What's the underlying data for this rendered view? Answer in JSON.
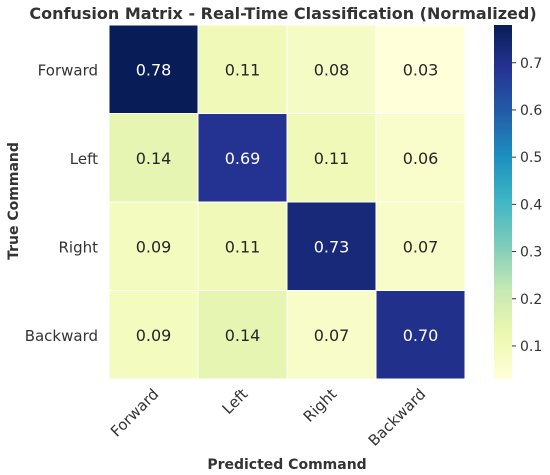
{
  "chart_data": {
    "type": "heatmap",
    "title": "Confusion Matrix - Real-Time Classification (Normalized)",
    "xlabel": "Predicted Command",
    "ylabel": "True Command",
    "x_categories": [
      "Forward",
      "Left",
      "Right",
      "Backward"
    ],
    "y_categories": [
      "Forward",
      "Left",
      "Right",
      "Backward"
    ],
    "values": [
      [
        0.78,
        0.11,
        0.08,
        0.03
      ],
      [
        0.14,
        0.69,
        0.11,
        0.06
      ],
      [
        0.09,
        0.11,
        0.73,
        0.07
      ],
      [
        0.09,
        0.14,
        0.07,
        0.7
      ]
    ],
    "value_labels": [
      [
        "0.78",
        "0.11",
        "0.08",
        "0.03"
      ],
      [
        "0.14",
        "0.69",
        "0.11",
        "0.06"
      ],
      [
        "0.09",
        "0.11",
        "0.73",
        "0.07"
      ],
      [
        "0.09",
        "0.14",
        "0.07",
        "0.70"
      ]
    ],
    "colormap": "YlGnBu",
    "colorbar": {
      "range": [
        0.03,
        0.78
      ],
      "ticks": [
        0.1,
        0.2,
        0.3,
        0.4,
        0.5,
        0.6,
        0.7
      ],
      "tick_labels": [
        "0.1",
        "0.2",
        "0.3",
        "0.4",
        "0.5",
        "0.6",
        "0.7"
      ]
    }
  }
}
